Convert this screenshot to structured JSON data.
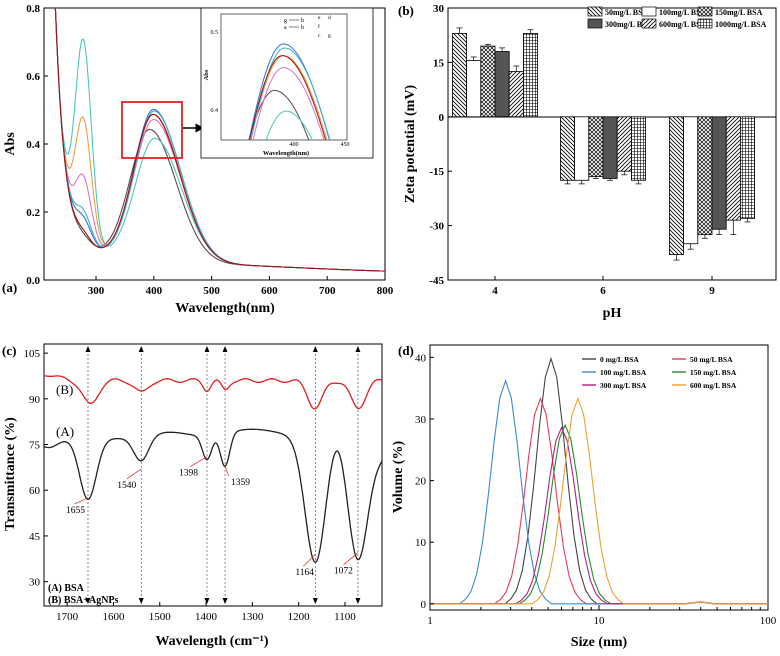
{
  "panels": [
    {
      "id": "a",
      "label": "(a)"
    },
    {
      "id": "b",
      "label": "(b)"
    },
    {
      "id": "c",
      "label": "(c)"
    },
    {
      "id": "d",
      "label": "(d)"
    }
  ],
  "chart_data": [
    {
      "id": "a",
      "type": "line",
      "xlabel": "Wavelength(nm)",
      "ylabel": "Abs",
      "xlim": [
        210,
        800
      ],
      "ylim": [
        0,
        0.8
      ],
      "xticks": [
        300,
        400,
        500,
        600,
        700,
        800
      ],
      "yticks": [
        0.0,
        0.2,
        0.4,
        0.6,
        0.8
      ],
      "series": [
        {
          "color": "#5a4a4a",
          "peak_x": 393,
          "peak_y": 0.445,
          "low_y": 0.055,
          "at_280": 0.12
        },
        {
          "color": "#3a6fd6",
          "peak_x": 400,
          "peak_y": 0.505,
          "low_y": 0.055,
          "at_280": 0.17
        },
        {
          "color": "#e8a040",
          "peak_x": 400,
          "peak_y": 0.49,
          "low_y": 0.055,
          "at_280": 0.46
        },
        {
          "color": "#4cc9b8",
          "peak_x": 402,
          "peak_y": 0.42,
          "low_y": 0.05,
          "at_280": 0.69
        },
        {
          "color": "#e070c0",
          "peak_x": 400,
          "peak_y": 0.475,
          "low_y": 0.055,
          "at_280": 0.29
        },
        {
          "color": "#40b0d0",
          "peak_x": 401,
          "peak_y": 0.5,
          "low_y": 0.055,
          "at_280": 0.19
        },
        {
          "color": "#a01010",
          "peak_x": 399,
          "peak_y": 0.49,
          "low_y": 0.055,
          "at_280": 0.13
        }
      ],
      "inset": {
        "xlabel": "Wavelength(nm)",
        "ylabel": "Abs",
        "xlim": [
          350,
          450
        ],
        "ylim": [
          0.38,
          0.54
        ],
        "xticks": [
          400,
          450
        ],
        "yticks": [
          0.4,
          0.5
        ],
        "annotations": [
          "g",
          "b",
          "a",
          "b",
          "e",
          "f",
          "c",
          "d",
          "g"
        ]
      }
    },
    {
      "id": "b",
      "type": "bar",
      "xlabel": "pH",
      "ylabel": "Zeta potential (mV)",
      "ylim": [
        -45,
        30
      ],
      "yticks": [
        -45,
        -30,
        -15,
        0,
        15,
        30
      ],
      "categories": [
        "4",
        "6",
        "9"
      ],
      "legend_position": "top-right",
      "series": [
        {
          "name": "50mg/L BSA",
          "values": [
            23,
            -17.5,
            -38
          ],
          "errors": [
            1.5,
            1,
            1.5
          ],
          "pattern": "diag-back"
        },
        {
          "name": "100mg/L BSA",
          "values": [
            15.5,
            -17.5,
            -35
          ],
          "errors": [
            1,
            1,
            1.5
          ],
          "pattern": "white"
        },
        {
          "name": "150mg/L BSA",
          "values": [
            19.5,
            -16.5,
            -32.5
          ],
          "errors": [
            0.5,
            0.5,
            1
          ],
          "pattern": "cross"
        },
        {
          "name": "300mg/L BSA",
          "values": [
            18,
            -17,
            -31
          ],
          "errors": [
            1,
            0.5,
            1.5
          ],
          "pattern": "dark"
        },
        {
          "name": "600mg/L BSA",
          "values": [
            12.5,
            -15,
            -28.5
          ],
          "errors": [
            1.5,
            1,
            4
          ],
          "pattern": "diag-fwd"
        },
        {
          "name": "1000mg/L BSA",
          "values": [
            23,
            -17.5,
            -28
          ],
          "errors": [
            1,
            1,
            1
          ],
          "pattern": "grid"
        }
      ]
    },
    {
      "id": "c",
      "type": "line",
      "xlabel": "Wavelength (cm⁻¹)",
      "ylabel": "Transmittance (%)",
      "xlim": [
        1750,
        1020
      ],
      "ylim": [
        22,
        108
      ],
      "xticks": [
        1700,
        1600,
        1500,
        1400,
        1300,
        1200,
        1100
      ],
      "yticks": [
        30,
        45,
        60,
        75,
        90,
        105
      ],
      "series": [
        {
          "name": "(A) BSA",
          "tag": "(A)",
          "color": "#222222"
        },
        {
          "name": "(B) BSA+AgNPs",
          "tag": "(B)",
          "color": "#e02020"
        }
      ],
      "peaks": [
        1655,
        1540,
        1398,
        1359,
        1164,
        1072
      ],
      "dashed_lines": [
        1655,
        1540,
        1398,
        1359,
        1164,
        1072
      ]
    },
    {
      "id": "d",
      "type": "line",
      "xlabel": "Size (nm)",
      "ylabel": "Volume (%)",
      "xscale": "log",
      "xlim": [
        1,
        100
      ],
      "ylim": [
        -1,
        42
      ],
      "xticks": [
        1,
        10,
        100
      ],
      "yticks": [
        0,
        10,
        20,
        30,
        40
      ],
      "legend_position": "top-right",
      "series": [
        {
          "name": "0 mg/L BSA",
          "color": "#444444",
          "peak_x": 5.2,
          "peak_y": 39.8
        },
        {
          "name": "50 mg/L BSA",
          "color": "#e83a5a",
          "peak_x": 4.5,
          "peak_y": 33.3
        },
        {
          "name": "100 mg/L BSA",
          "color": "#3a8ad0",
          "peak_x": 2.8,
          "peak_y": 36.2
        },
        {
          "name": "150 mg/L BSA",
          "color": "#2a8a2a",
          "peak_x": 6.3,
          "peak_y": 29
        },
        {
          "name": "300 mg/L BSA",
          "color": "#b0208a",
          "peak_x": 6.0,
          "peak_y": 28.6
        },
        {
          "name": "600 mg/L BSA",
          "color": "#f0a030",
          "peak_x": 7.5,
          "peak_y": 33.3
        }
      ]
    }
  ]
}
